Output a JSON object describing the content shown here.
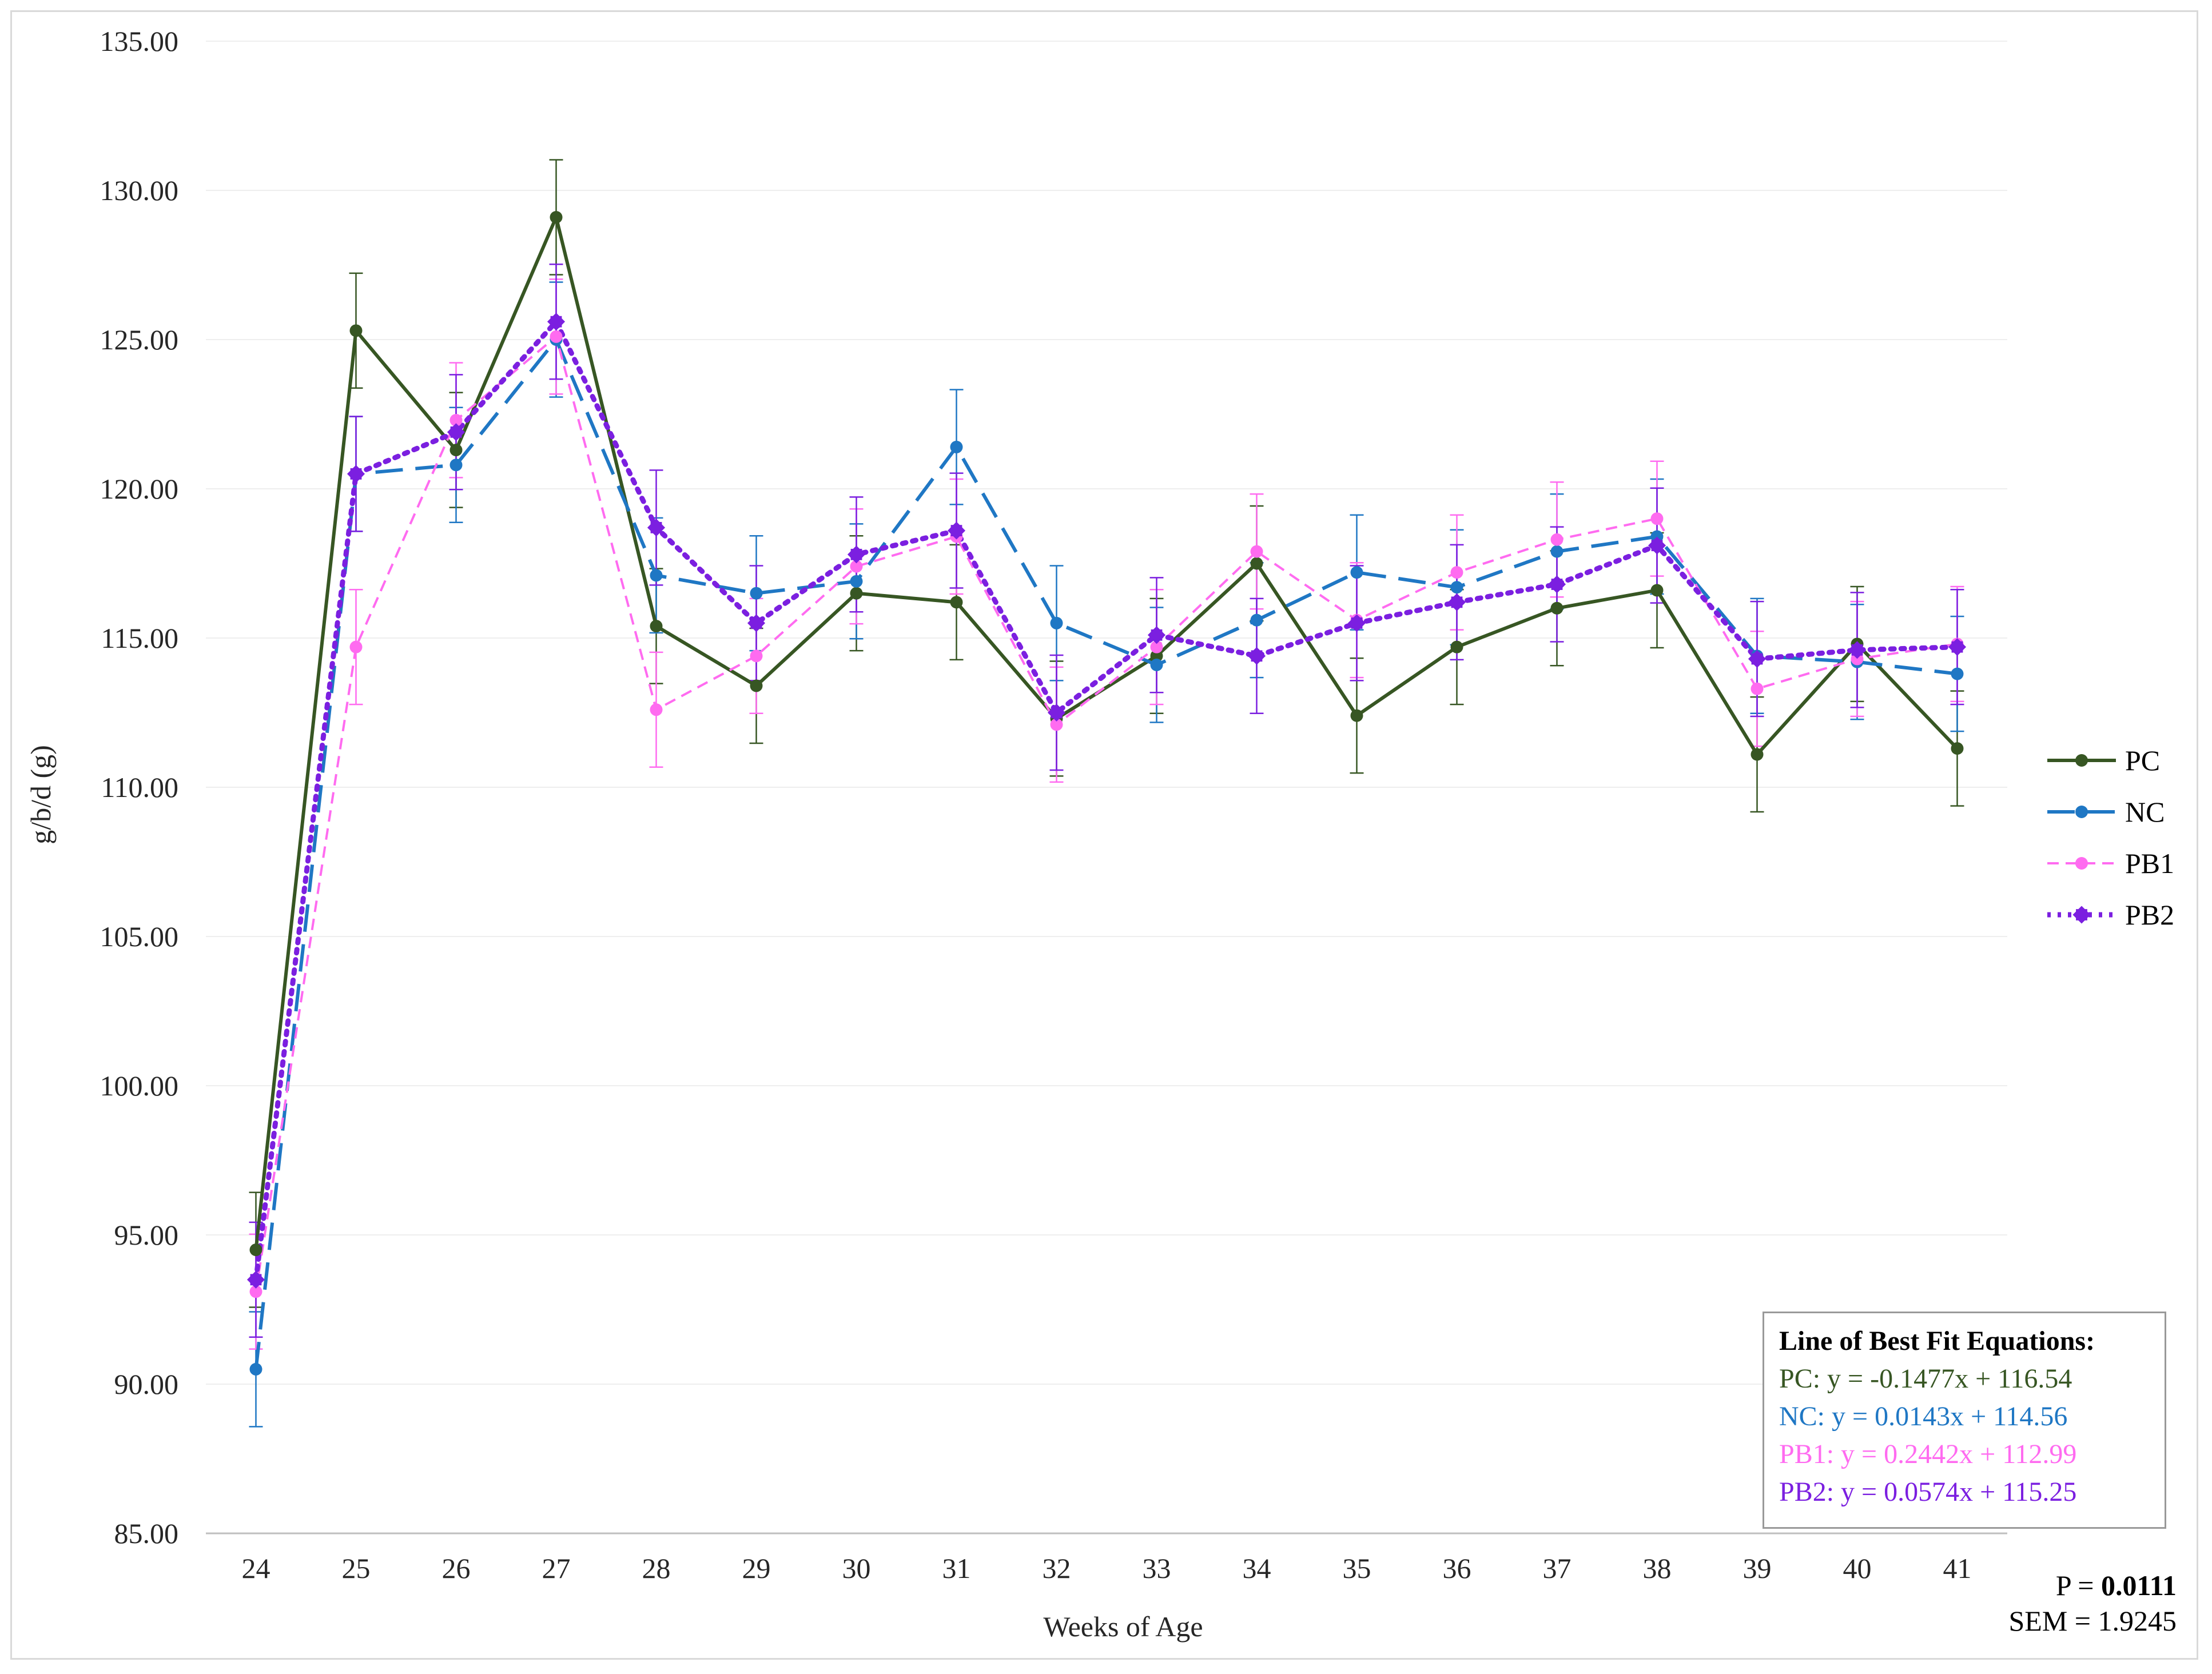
{
  "chart_data": {
    "type": "line",
    "title": "",
    "xlabel": "Weeks of Age",
    "ylabel": "g/b/d (g)",
    "ylim": [
      85,
      135
    ],
    "yticks": [
      "85.00",
      "90.00",
      "95.00",
      "100.00",
      "105.00",
      "110.00",
      "115.00",
      "120.00",
      "125.00",
      "130.00",
      "135.00"
    ],
    "categories": [
      "24",
      "25",
      "26",
      "27",
      "28",
      "29",
      "30",
      "31",
      "32",
      "33",
      "34",
      "35",
      "36",
      "37",
      "38",
      "39",
      "40",
      "41"
    ],
    "error": 1.9245,
    "grid": true,
    "legend_position": "right",
    "series": [
      {
        "name": "PC",
        "color": "#375623",
        "style": "solid",
        "marker": "circle",
        "values": [
          94.5,
          125.3,
          121.3,
          129.1,
          115.4,
          113.4,
          116.5,
          116.2,
          112.3,
          114.4,
          117.5,
          112.4,
          114.7,
          116.0,
          116.6,
          111.1,
          114.8,
          111.3
        ]
      },
      {
        "name": "NC",
        "color": "#1f77c4",
        "style": "longdash",
        "marker": "circle",
        "values": [
          90.5,
          120.5,
          120.8,
          125.0,
          117.1,
          116.5,
          116.9,
          121.4,
          115.5,
          114.1,
          115.6,
          117.2,
          116.7,
          117.9,
          118.4,
          114.4,
          114.2,
          113.8
        ]
      },
      {
        "name": "PB1",
        "color": "#ff6bf0",
        "style": "dash",
        "marker": "circle",
        "values": [
          93.1,
          114.7,
          122.3,
          125.1,
          112.6,
          114.4,
          117.4,
          118.4,
          112.1,
          114.7,
          117.9,
          115.6,
          117.2,
          118.3,
          119.0,
          113.3,
          114.3,
          114.8
        ]
      },
      {
        "name": "PB2",
        "color": "#7b1fe0",
        "style": "dot",
        "marker": "x",
        "values": [
          93.5,
          120.5,
          121.9,
          125.6,
          118.7,
          115.5,
          117.8,
          118.6,
          112.5,
          115.1,
          114.4,
          115.5,
          116.2,
          116.8,
          118.1,
          114.3,
          114.6,
          114.7
        ]
      }
    ]
  },
  "equations": {
    "title": "Line of Best Fit Equations:",
    "items": [
      {
        "text": "PC: y = -0.1477x + 116.54",
        "color": "#375623"
      },
      {
        "text": "NC: y = 0.0143x + 114.56",
        "color": "#1f77c4"
      },
      {
        "text": "PB1: y = 0.2442x + 112.99",
        "color": "#ff6bf0"
      },
      {
        "text": "PB2: y = 0.0574x + 115.25",
        "color": "#7b1fe0"
      }
    ]
  },
  "stats": {
    "p_label": "P = ",
    "p_value": "0.0111",
    "sem": "SEM = 1.9245"
  }
}
